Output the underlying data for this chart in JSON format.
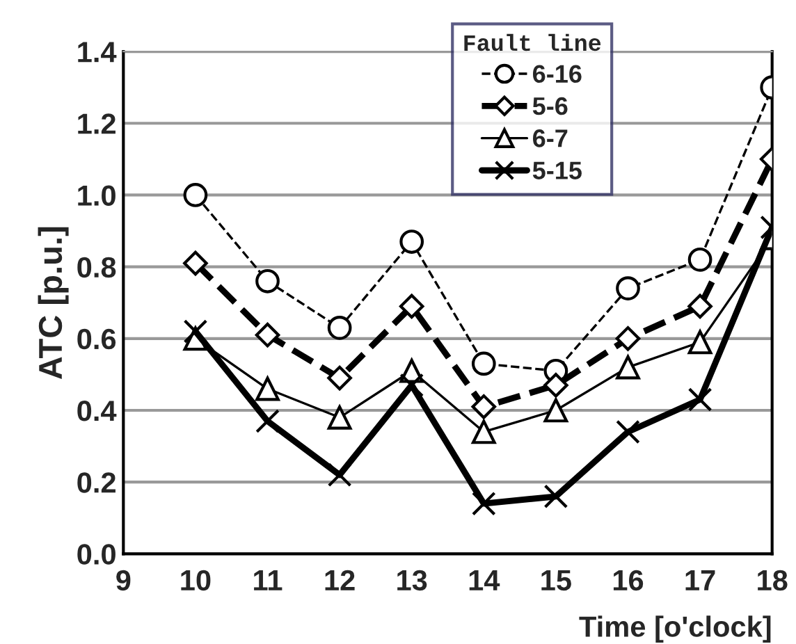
{
  "chart_data": {
    "type": "line",
    "xlabel": "Time [o'clock]",
    "ylabel": "ATC [p.u.]",
    "legend_title": "Fault line",
    "legend": "top",
    "x": [
      10,
      11,
      12,
      13,
      14,
      15,
      16,
      17,
      18
    ],
    "xlim": [
      9,
      18
    ],
    "xticks": [
      9,
      10,
      11,
      12,
      13,
      14,
      15,
      16,
      17,
      18
    ],
    "ylim": [
      0,
      1.4
    ],
    "yticks": [
      {
        "value": 0,
        "label": "0.0"
      },
      0.2,
      0.4,
      0.6,
      0.8,
      {
        "value": 1,
        "label": "1.0"
      },
      1.2,
      1.4
    ],
    "grid": "y",
    "series": [
      {
        "name": "6-16",
        "color": "#000000",
        "marker": "circle",
        "line_style": "dashed",
        "values": [
          1.0,
          0.76,
          0.63,
          0.87,
          0.53,
          0.51,
          0.74,
          0.82,
          1.3
        ]
      },
      {
        "name": "5-6",
        "color": "#000000",
        "marker": "diamond",
        "line_style": "dashed",
        "values": [
          0.81,
          0.61,
          0.49,
          0.69,
          0.41,
          0.47,
          0.6,
          0.69,
          1.1
        ]
      },
      {
        "name": "6-7",
        "color": "#000000",
        "marker": "triangle",
        "line_style": "solid",
        "values": [
          0.6,
          0.46,
          0.38,
          0.51,
          0.34,
          0.4,
          0.52,
          0.59,
          0.88
        ]
      },
      {
        "name": "5-15",
        "color": "#000000",
        "marker": "cross",
        "line_style": "solid",
        "values": [
          0.62,
          0.37,
          0.22,
          0.47,
          0.14,
          0.16,
          0.34,
          0.43,
          0.91
        ]
      }
    ]
  }
}
